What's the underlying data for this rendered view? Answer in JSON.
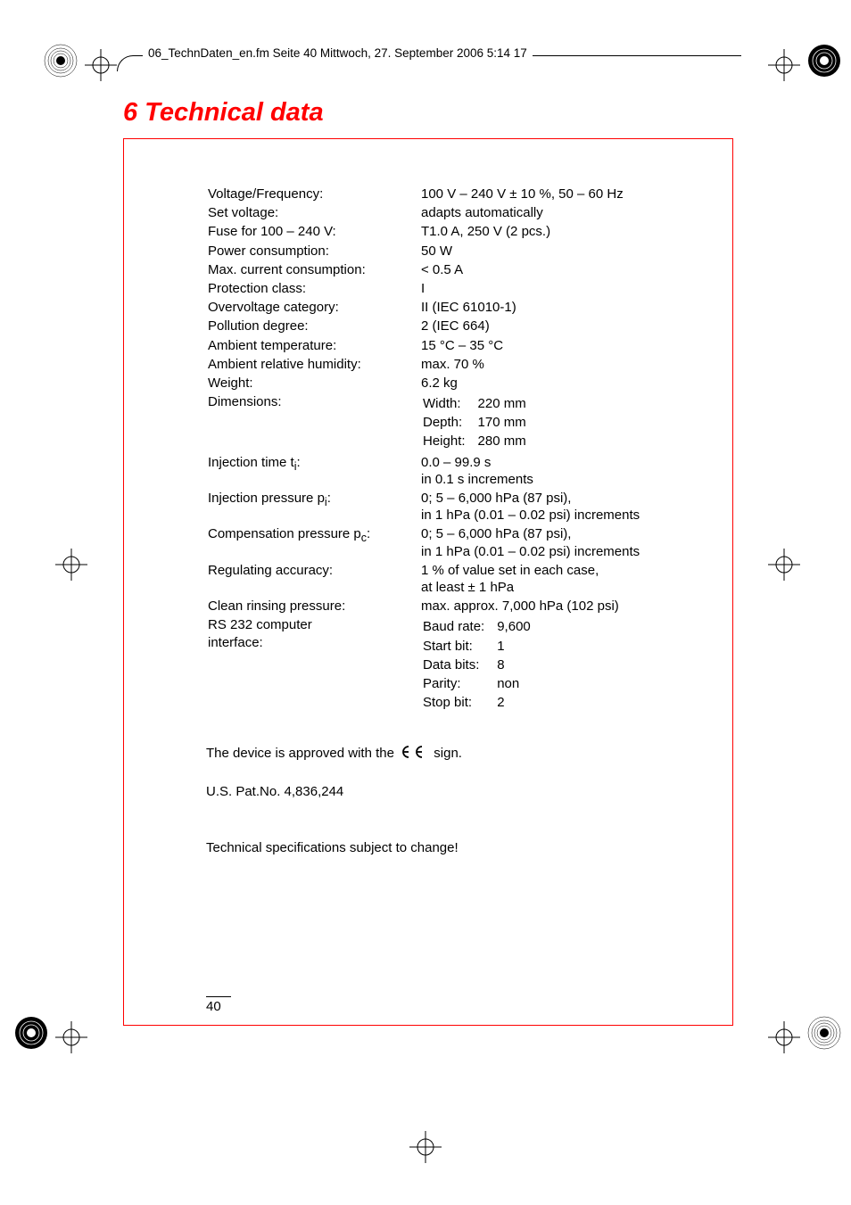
{
  "header": "06_TechnDaten_en.fm  Seite 40  Mittwoch, 27. September 2006  5:14 17",
  "chapterTitle": "6  Technical data",
  "specs": [
    {
      "label": "Voltage/Frequency:",
      "value": "100 V – 240 V ± 10 %, 50 – 60 Hz"
    },
    {
      "label": "Set voltage:",
      "value": "adapts automatically"
    },
    {
      "label": "Fuse for 100 – 240 V:",
      "value": "T1.0 A, 250 V (2 pcs.)"
    },
    {
      "label": "Power consumption:",
      "value": "50 W"
    },
    {
      "label": "Max. current consumption:",
      "value": "< 0.5 A"
    },
    {
      "label": "Protection class:",
      "value": "I"
    },
    {
      "label": "Overvoltage category:",
      "value": "II (IEC 61010-1)"
    },
    {
      "label": "Pollution degree:",
      "value": "2 (IEC 664)"
    },
    {
      "label": "Ambient temperature:",
      "value": "15 °C – 35 °C"
    },
    {
      "label": "Ambient relative humidity:",
      "value": "max. 70 %"
    },
    {
      "label": "Weight:",
      "value": "6.2 kg"
    }
  ],
  "dimensions": {
    "label": "Dimensions:",
    "rows": [
      {
        "k": "Width:",
        "v": "220 mm"
      },
      {
        "k": "Depth:",
        "v": "170 mm"
      },
      {
        "k": "Height:",
        "v": "280 mm"
      }
    ]
  },
  "injectionTime": {
    "labelPrefix": "Injection time t",
    "labelSub": "i",
    "labelSuffix": ":",
    "line1": "0.0 – 99.9 s",
    "line2": "in 0.1 s increments"
  },
  "injectionPressure": {
    "labelPrefix": "Injection pressure p",
    "labelSub": "i",
    "labelSuffix": ":",
    "line1": "0; 5 – 6,000 hPa (87 psi),",
    "line2": "in 1 hPa (0.01 – 0.02 psi) increments"
  },
  "compensationPressure": {
    "labelPrefix": "Compensation pressure p",
    "labelSub": "c",
    "labelSuffix": ":",
    "line1": "0; 5 – 6,000 hPa (87 psi),",
    "line2": "in 1 hPa (0.01 – 0.02 psi) increments"
  },
  "regulatingAccuracy": {
    "label": "Regulating accuracy:",
    "line1": "1 % of value set in each case,",
    "line2": "at least ± 1 hPa"
  },
  "cleanRinsing": {
    "label": "Clean rinsing pressure:",
    "value": "max. approx. 7,000 hPa (102 psi)"
  },
  "rs232": {
    "label1": "RS 232 computer",
    "label2": "interface:",
    "rows": [
      {
        "k": "Baud rate:",
        "v": "9,600"
      },
      {
        "k": "Start bit:",
        "v": "1"
      },
      {
        "k": "Data bits:",
        "v": "8"
      },
      {
        "k": "Parity:",
        "v": "non"
      },
      {
        "k": "Stop bit:",
        "v": "2"
      }
    ]
  },
  "ceTextBefore": "The device is approved with the ",
  "ceTextAfter": " sign.",
  "patentText": "U.S. Pat.No. 4,836,244",
  "changeText": "Technical specifications subject to change!",
  "pageNumber": "40",
  "colors": {
    "red": "#ff0000",
    "black": "#000000"
  }
}
